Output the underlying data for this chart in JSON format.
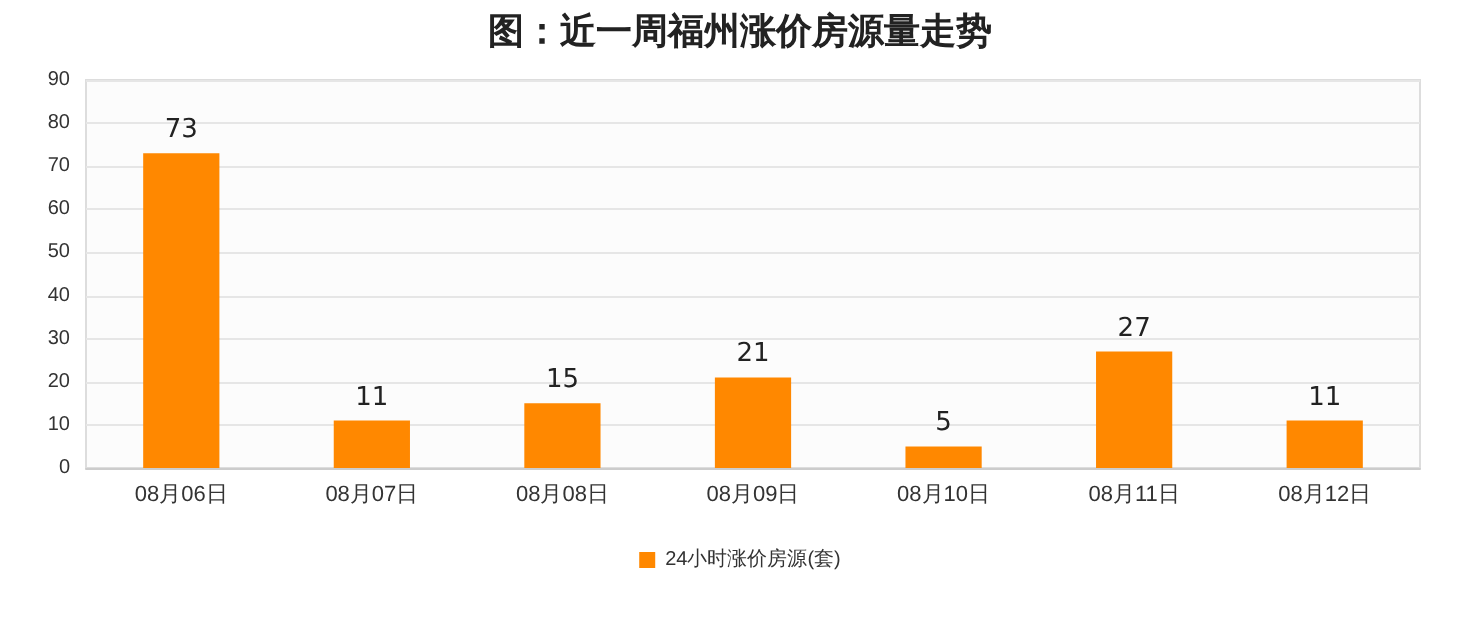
{
  "chart_data": {
    "type": "bar",
    "title": "图：近一周福州涨价房源量走势",
    "categories": [
      "08月06日",
      "08月07日",
      "08月08日",
      "08月09日",
      "08月10日",
      "08月11日",
      "08月12日"
    ],
    "series": [
      {
        "name": "24小时涨价房源(套)",
        "color": "#ff8800",
        "values": [
          73,
          11,
          15,
          21,
          5,
          27,
          11
        ]
      }
    ],
    "ylim": [
      0,
      90
    ],
    "yticks": [
      0,
      10,
      20,
      30,
      40,
      50,
      60,
      70,
      80,
      90
    ],
    "grid": "y",
    "legend": "bottom",
    "data_labels": true
  }
}
